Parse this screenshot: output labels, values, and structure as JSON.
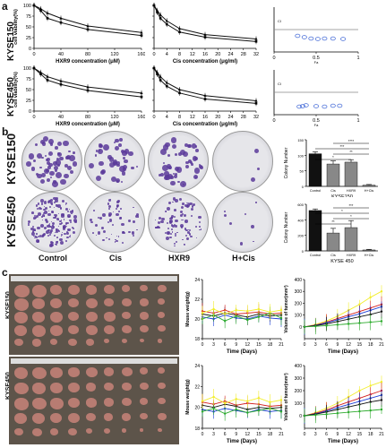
{
  "panels": {
    "a": "a",
    "b": "b",
    "c": "c",
    "a_rows": [
      "KYSE150",
      "KYSE450"
    ],
    "b_rows": [
      "KYSE150",
      "KYSE450"
    ],
    "c_rows": [
      "KYSE150",
      "KYSE450"
    ],
    "b_columns": [
      "Control",
      "Cis",
      "HXR9",
      "H+Cis"
    ],
    "colors": {
      "black": "#111111",
      "gray": "#888888",
      "blue": "#1f3fd6",
      "red": "#d31f1f",
      "green": "#2cab2c",
      "yellow": "#f2ee2c",
      "circle": "#4a6fd8"
    }
  },
  "chart_data": [
    {
      "id": "a1",
      "type": "line",
      "xlabel": "HXR9  concentration (μM)",
      "ylabel": "cell viability(%)",
      "xticks": [
        0,
        40,
        80,
        120,
        160
      ],
      "yticks": [
        0,
        25,
        50,
        75,
        100
      ],
      "xlim": [
        0,
        160
      ],
      "ylim": [
        0,
        100
      ],
      "series": [
        {
          "x": [
            0,
            10,
            20,
            40,
            80,
            160
          ],
          "values": [
            100,
            92,
            82,
            70,
            52,
            37
          ]
        },
        {
          "x": [
            0,
            10,
            20,
            40,
            80,
            160
          ],
          "values": [
            100,
            88,
            70,
            60,
            44,
            30
          ]
        }
      ]
    },
    {
      "id": "a2",
      "type": "line",
      "xlabel": "Cis  concentration (μg/ml)",
      "ylabel": "",
      "xticks": [
        0,
        4,
        8,
        12,
        16,
        20,
        24,
        28,
        32
      ],
      "yticks": [
        0,
        25,
        50,
        75,
        100
      ],
      "xlim": [
        0,
        32
      ],
      "ylim": [
        0,
        100
      ],
      "series": [
        {
          "x": [
            0,
            1,
            2,
            4,
            8,
            16,
            32
          ],
          "values": [
            100,
            88,
            78,
            64,
            46,
            32,
            22
          ]
        },
        {
          "x": [
            0,
            1,
            2,
            4,
            8,
            16,
            32
          ],
          "values": [
            100,
            84,
            70,
            56,
            38,
            26,
            16
          ]
        }
      ]
    },
    {
      "id": "a3",
      "type": "scatter",
      "xlabel": "Fa",
      "ylabel": "CI",
      "xticks": [
        0,
        0.5,
        1
      ],
      "xtick_labels": [
        "0",
        "0.5",
        "1"
      ],
      "xlim": [
        0,
        1
      ],
      "ylim": [
        0,
        2
      ],
      "ref_line": 1.0,
      "x": [
        0.28,
        0.36,
        0.44,
        0.52,
        0.6,
        0.7,
        0.82
      ],
      "values": [
        0.72,
        0.66,
        0.6,
        0.58,
        0.6,
        0.6,
        0.58
      ]
    },
    {
      "id": "a4",
      "type": "line",
      "xlabel": "HXR9  concentration (μM)",
      "ylabel": "cell viability(%)",
      "xticks": [
        0,
        40,
        80,
        120,
        160
      ],
      "yticks": [
        0,
        25,
        50,
        75,
        100
      ],
      "xlim": [
        0,
        160
      ],
      "ylim": [
        0,
        100
      ],
      "series": [
        {
          "x": [
            0,
            10,
            20,
            40,
            80,
            160
          ],
          "values": [
            100,
            90,
            80,
            70,
            56,
            42
          ]
        },
        {
          "x": [
            0,
            10,
            20,
            40,
            80,
            160
          ],
          "values": [
            100,
            86,
            72,
            62,
            48,
            33
          ]
        }
      ]
    },
    {
      "id": "a5",
      "type": "line",
      "xlabel": "Cis  concentration (μg/ml)",
      "ylabel": "",
      "xticks": [
        0,
        4,
        8,
        12,
        16,
        20,
        24,
        28,
        32
      ],
      "yticks": [
        0,
        25,
        50,
        75,
        100
      ],
      "xlim": [
        0,
        32
      ],
      "ylim": [
        0,
        100
      ],
      "series": [
        {
          "x": [
            0,
            1,
            2,
            4,
            8,
            16,
            32
          ],
          "values": [
            100,
            90,
            80,
            66,
            50,
            36,
            24
          ]
        },
        {
          "x": [
            0,
            1,
            2,
            4,
            8,
            16,
            32
          ],
          "values": [
            100,
            86,
            72,
            58,
            42,
            28,
            18
          ]
        }
      ]
    },
    {
      "id": "a6",
      "type": "scatter",
      "xlabel": "Fa",
      "ylabel": "CI",
      "xticks": [
        0,
        0.5,
        1
      ],
      "xtick_labels": [
        "0",
        "0.5",
        "1"
      ],
      "xlim": [
        0,
        1
      ],
      "ylim": [
        0,
        2
      ],
      "ref_line": 1.0,
      "x": [
        0.3,
        0.34,
        0.38,
        0.5,
        0.6,
        0.7,
        0.78
      ],
      "values": [
        0.36,
        0.38,
        0.42,
        0.38,
        0.36,
        0.4,
        0.4
      ]
    },
    {
      "id": "b1",
      "type": "bar",
      "title": "",
      "xlabel": "KYSE150",
      "ylabel": "Colony Number",
      "categories": [
        "Control",
        "Cis",
        "HXR9",
        "H+Cis"
      ],
      "values": [
        105,
        72,
        78,
        4
      ],
      "errors": [
        6,
        10,
        8,
        2
      ],
      "ylim": [
        0,
        150
      ],
      "yticks": [
        0,
        50,
        100,
        150
      ],
      "significance": [
        "*",
        "**",
        "***",
        "****"
      ]
    },
    {
      "id": "b2",
      "type": "bar",
      "xlabel": "KYSE 450",
      "ylabel": "Colony Number",
      "categories": [
        "Control",
        "Cis",
        "HXR9",
        "H+Cis"
      ],
      "values": [
        520,
        230,
        300,
        12
      ],
      "errors": [
        20,
        60,
        90,
        8
      ],
      "ylim": [
        0,
        600
      ],
      "yticks": [
        0,
        200,
        400,
        600
      ],
      "significance": [
        "**",
        "*",
        "*",
        "***"
      ]
    },
    {
      "id": "c1",
      "type": "line",
      "xlabel": "Time (Days)",
      "ylabel": "Mouse weight(g)",
      "xticks": [
        0,
        3,
        6,
        9,
        12,
        15,
        18,
        21
      ],
      "yticks": [
        18,
        20,
        22,
        24
      ],
      "xlim": [
        0,
        21
      ],
      "ylim": [
        18,
        24
      ],
      "series": [
        {
          "color": "black",
          "x": [
            0,
            3,
            6,
            9,
            12,
            15,
            18,
            21
          ],
          "values": [
            20.5,
            20.3,
            20.6,
            20.4,
            20.2,
            20.5,
            20.3,
            20.4
          ]
        },
        {
          "color": "blue",
          "x": [
            0,
            3,
            6,
            9,
            12,
            15,
            18,
            21
          ],
          "values": [
            20.2,
            20.0,
            20.4,
            20.1,
            20.0,
            20.3,
            20.1,
            20.0
          ]
        },
        {
          "color": "red",
          "x": [
            0,
            3,
            6,
            9,
            12,
            15,
            18,
            21
          ],
          "values": [
            20.8,
            20.6,
            20.9,
            20.5,
            20.6,
            20.7,
            20.5,
            20.6
          ]
        },
        {
          "color": "green",
          "x": [
            0,
            3,
            6,
            9,
            12,
            15,
            18,
            21
          ],
          "values": [
            20.0,
            20.4,
            19.8,
            20.3,
            19.9,
            20.2,
            20.6,
            20.1
          ]
        },
        {
          "color": "yellow",
          "x": [
            0,
            3,
            6,
            9,
            12,
            15,
            18,
            21
          ],
          "values": [
            20.6,
            21.0,
            20.5,
            20.9,
            20.8,
            21.0,
            20.7,
            20.9
          ]
        }
      ]
    },
    {
      "id": "c2",
      "type": "line",
      "xlabel": "Time (Days)",
      "ylabel": "Volume of tumor(mm³)",
      "xticks": [
        0,
        3,
        6,
        9,
        12,
        15,
        18,
        21
      ],
      "yticks": [
        0,
        100,
        200,
        300,
        400
      ],
      "xlim": [
        0,
        21
      ],
      "ylim": [
        -100,
        400
      ],
      "series": [
        {
          "color": "yellow",
          "x": [
            0,
            3,
            6,
            9,
            12,
            15,
            18,
            21
          ],
          "values": [
            0,
            20,
            50,
            90,
            140,
            190,
            250,
            300
          ]
        },
        {
          "color": "red",
          "x": [
            0,
            3,
            6,
            9,
            12,
            15,
            18,
            21
          ],
          "values": [
            0,
            15,
            40,
            70,
            100,
            130,
            160,
            190
          ]
        },
        {
          "color": "blue",
          "x": [
            0,
            3,
            6,
            9,
            12,
            15,
            18,
            21
          ],
          "values": [
            0,
            12,
            35,
            60,
            85,
            110,
            140,
            170
          ]
        },
        {
          "color": "black",
          "x": [
            0,
            3,
            6,
            9,
            12,
            15,
            18,
            21
          ],
          "values": [
            0,
            10,
            25,
            45,
            65,
            85,
            105,
            130
          ]
        },
        {
          "color": "green",
          "x": [
            0,
            3,
            6,
            9,
            12,
            15,
            18,
            21
          ],
          "values": [
            0,
            5,
            10,
            18,
            25,
            32,
            40,
            48
          ]
        }
      ]
    },
    {
      "id": "c3",
      "type": "line",
      "xlabel": "Time (Days)",
      "ylabel": "Mouse weight(g)",
      "xticks": [
        0,
        3,
        6,
        9,
        12,
        15,
        18,
        21
      ],
      "yticks": [
        18,
        20,
        22,
        24
      ],
      "xlim": [
        0,
        21
      ],
      "ylim": [
        18,
        24
      ],
      "series": [
        {
          "color": "black",
          "x": [
            0,
            3,
            6,
            9,
            12,
            15,
            18,
            21
          ],
          "values": [
            20.2,
            20.0,
            20.3,
            20.1,
            19.8,
            20.0,
            19.9,
            20.0
          ]
        },
        {
          "color": "blue",
          "x": [
            0,
            3,
            6,
            9,
            12,
            15,
            18,
            21
          ],
          "values": [
            19.8,
            19.6,
            19.9,
            19.7,
            19.5,
            19.8,
            19.6,
            19.7
          ]
        },
        {
          "color": "red",
          "x": [
            0,
            3,
            6,
            9,
            12,
            15,
            18,
            21
          ],
          "values": [
            20.5,
            20.3,
            20.6,
            20.2,
            20.4,
            20.3,
            20.1,
            20.2
          ]
        },
        {
          "color": "green",
          "x": [
            0,
            3,
            6,
            9,
            12,
            15,
            18,
            21
          ],
          "values": [
            19.6,
            19.9,
            19.4,
            19.8,
            19.5,
            19.7,
            19.9,
            19.6
          ]
        },
        {
          "color": "yellow",
          "x": [
            0,
            3,
            6,
            9,
            12,
            15,
            18,
            21
          ],
          "values": [
            20.6,
            21.0,
            20.4,
            20.8,
            20.6,
            20.9,
            20.5,
            20.7
          ]
        }
      ]
    },
    {
      "id": "c4",
      "type": "line",
      "xlabel": "Time (Days)",
      "ylabel": "Volume of tumor(mm³)",
      "xticks": [
        0,
        3,
        6,
        9,
        12,
        15,
        18,
        21
      ],
      "yticks": [
        0,
        100,
        200,
        300,
        400
      ],
      "xlim": [
        0,
        21
      ],
      "ylim": [
        -100,
        400
      ],
      "series": [
        {
          "color": "yellow",
          "x": [
            0,
            3,
            6,
            9,
            12,
            15,
            18,
            21
          ],
          "values": [
            0,
            25,
            60,
            100,
            150,
            200,
            240,
            270
          ]
        },
        {
          "color": "red",
          "x": [
            0,
            3,
            6,
            9,
            12,
            15,
            18,
            21
          ],
          "values": [
            0,
            20,
            45,
            80,
            110,
            140,
            170,
            200
          ]
        },
        {
          "color": "blue",
          "x": [
            0,
            3,
            6,
            9,
            12,
            15,
            18,
            21
          ],
          "values": [
            0,
            15,
            38,
            65,
            90,
            115,
            140,
            165
          ]
        },
        {
          "color": "black",
          "x": [
            0,
            3,
            6,
            9,
            12,
            15,
            18,
            21
          ],
          "values": [
            0,
            12,
            30,
            50,
            70,
            90,
            110,
            125
          ]
        },
        {
          "color": "green",
          "x": [
            0,
            3,
            6,
            9,
            12,
            15,
            18,
            21
          ],
          "values": [
            0,
            6,
            12,
            20,
            28,
            35,
            42,
            50
          ]
        }
      ]
    }
  ]
}
